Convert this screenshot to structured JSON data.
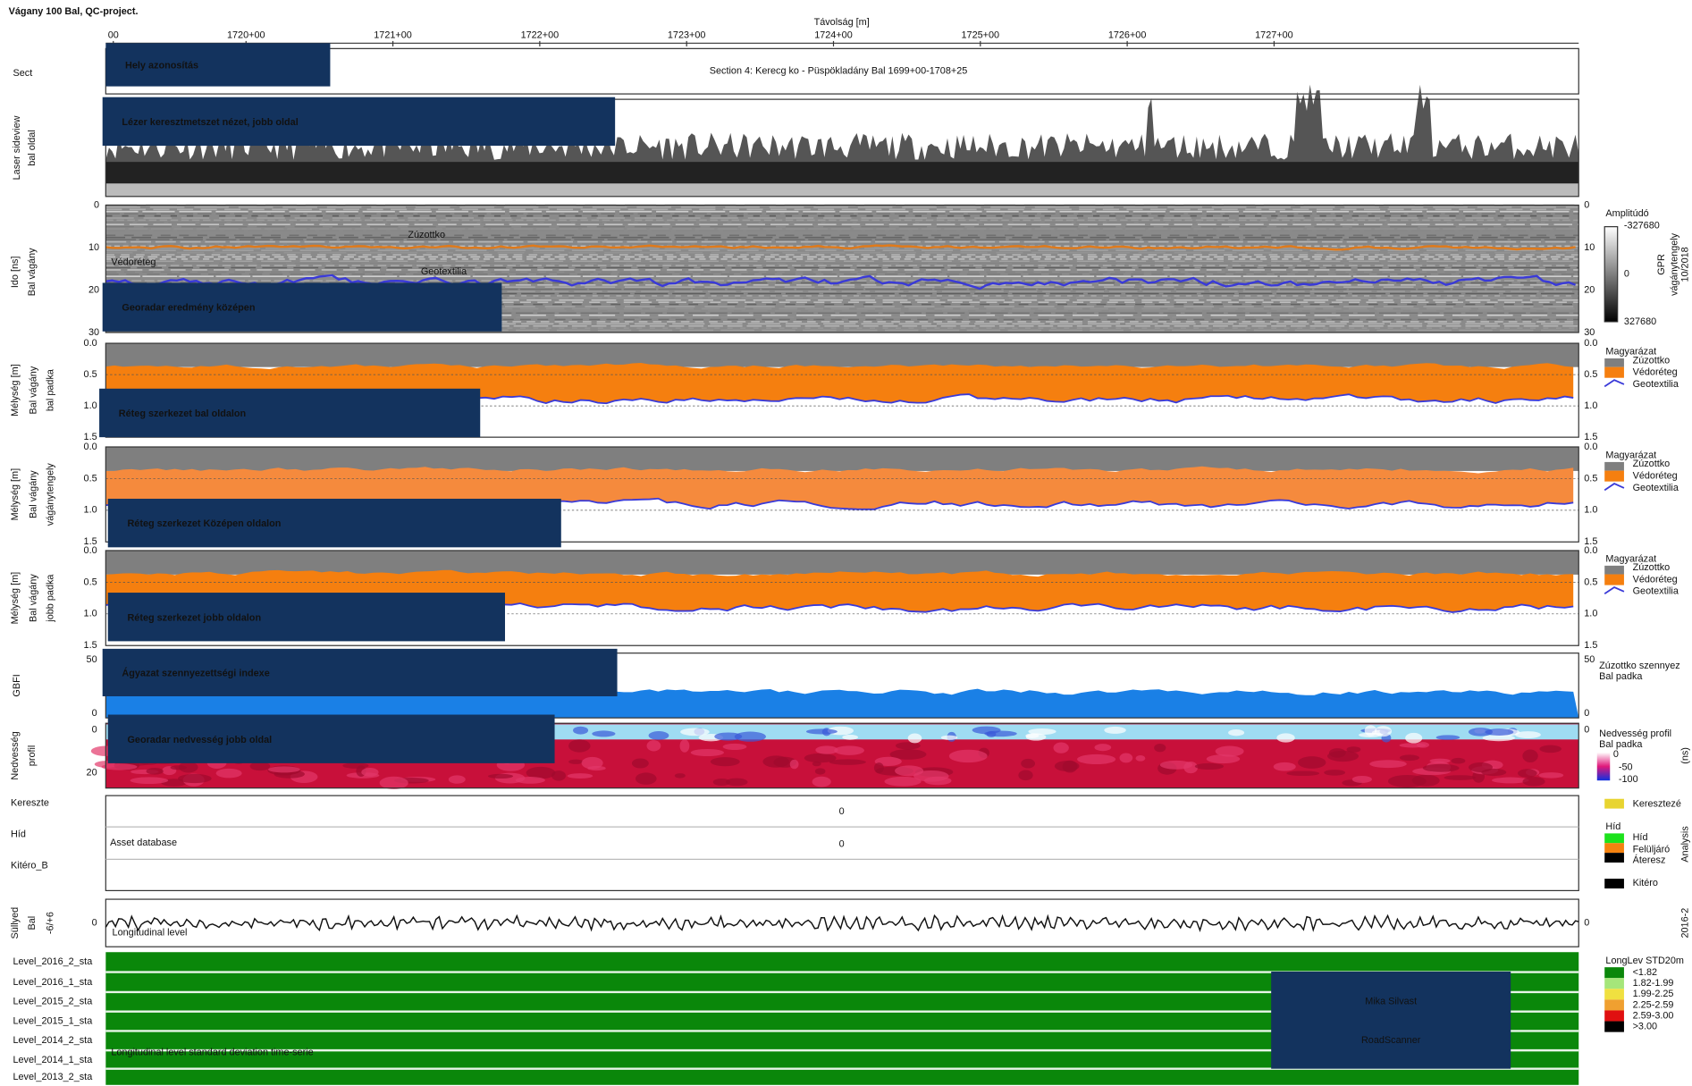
{
  "header": {
    "title": "Vágany 100 Bal, QC-project.",
    "axis_title": "Távolság [m]",
    "distance_ticks": [
      "00",
      "1720+00",
      "1721+00",
      "1722+00",
      "1723+00",
      "1724+00",
      "1725+00",
      "1726+00",
      "1727+00"
    ]
  },
  "sect": {
    "label": "Sect",
    "text": "Section 4: Kerecg ko - Püspökladány Bal 1699+00-1708+25",
    "callout": "Hely azonosítás"
  },
  "laser": {
    "label": [
      "Laser sideview",
      "bal oldal"
    ],
    "callout": "Lézer keresztmetszet nézet, jobb oldal"
  },
  "gpr": {
    "label": [
      "Ido [ns]",
      "Bal vágány"
    ],
    "ticks": [
      "0",
      "10",
      "20",
      "30"
    ],
    "annotations": [
      "Zúzottko",
      "Védoréteg",
      "Geotextilia"
    ],
    "legend": {
      "title": "Amplitúdó",
      "scale": [
        "-327680",
        "0",
        "327680"
      ],
      "side": [
        "GPR",
        "vágánytengely",
        "10/2018"
      ]
    },
    "callout": "Georadar eredmény középen"
  },
  "layers": [
    {
      "label": [
        "Mélység [m]",
        "Bal vágány",
        "bal padka"
      ],
      "callout": "Réteg szerkezet bal oldalon"
    },
    {
      "label": [
        "Mélység [m]",
        "Bal vágány",
        "vágánytengely"
      ],
      "callout": "Réteg szerkezet Középen oldalon"
    },
    {
      "label": [
        "Mélység [m]",
        "Bal vágány",
        "jobb padka"
      ],
      "callout": "Réteg szerkezet jobb oldalon"
    }
  ],
  "layer_ticks": [
    "0.0",
    "0.5",
    "1.0",
    "1.5"
  ],
  "layer_legend": [
    "Magyarázat",
    "Zúzottko",
    "Védoréteg",
    "Geotextilia"
  ],
  "gbfi": {
    "label": "GBFI",
    "ticks": [
      "50",
      "0"
    ],
    "legend": [
      "Zúzottko szennyez",
      "Bal padka"
    ],
    "callout": "Ágyazat szennyezettségi indexe"
  },
  "moisture": {
    "label": [
      "Nedvesség",
      "profil"
    ],
    "ticks": [
      "0",
      "20"
    ],
    "legend": [
      "Nedvesség profil",
      "Bal padka",
      "0",
      "-50",
      "-100"
    ],
    "unit": "(ns)",
    "callout": "Georadar nedvesség jobb oldal"
  },
  "assets": {
    "rows": [
      "Kereszte",
      "Híd",
      "Kitéro_B"
    ],
    "values": [
      "0",
      "0"
    ],
    "title": "Asset database",
    "legend": [
      "Keresztezé",
      "Híd",
      "Híd",
      "Felüljáró",
      "Áteresz",
      "Kitéro"
    ],
    "side": "Analysis"
  },
  "level": {
    "label": [
      "Süllyed",
      "Bal",
      "-6/+6"
    ],
    "tick": "0",
    "title": "Longitudinal level",
    "side": "2016-2"
  },
  "std": {
    "rows": [
      "Level_2016_2_sta",
      "Level_2016_1_sta",
      "Level_2015_2_sta",
      "Level_2015_1_sta",
      "Level_2014_2_sta",
      "Level_2014_1_sta",
      "Level_2013_2_sta"
    ],
    "title": "Longitudinal level standard deviation time-serie",
    "legend_title": "LongLev STD20m",
    "legend": [
      "<1.82",
      "1.82-1.99",
      "1.99-2.25",
      "2.25-2.59",
      "2.59-3.00",
      ">3.00"
    ]
  },
  "signature": [
    "Mika Silvast",
    "RoadScanner"
  ]
}
